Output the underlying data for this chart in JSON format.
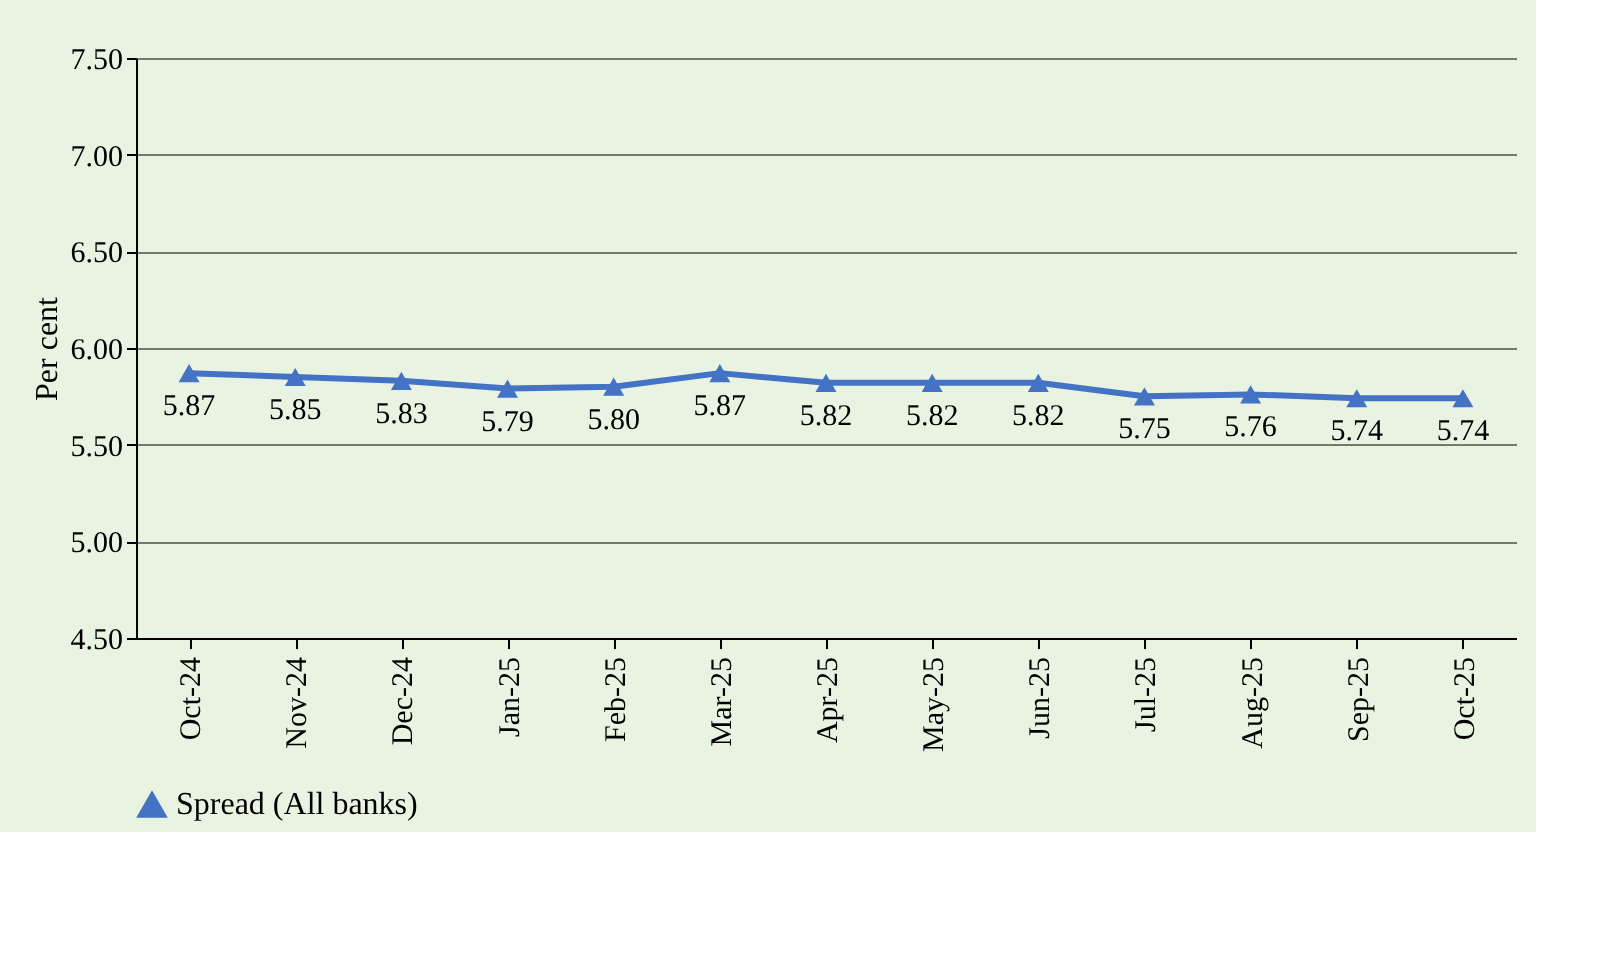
{
  "chart_data": {
    "type": "line",
    "ylabel": "Per cent",
    "categories": [
      "Oct-24",
      "Nov-24",
      "Dec-24",
      "Jan-25",
      "Feb-25",
      "Mar-25",
      "Apr-25",
      "May-25",
      "Jun-25",
      "Jul-25",
      "Aug-25",
      "Sep-25",
      "Oct-25"
    ],
    "series": [
      {
        "name": "Spread (All banks)",
        "color": "#4472c4",
        "values": [
          5.87,
          5.85,
          5.83,
          5.79,
          5.8,
          5.87,
          5.82,
          5.82,
          5.82,
          5.75,
          5.76,
          5.74,
          5.74
        ],
        "value_labels": [
          "5.87",
          "5.85",
          "5.83",
          "5.79",
          "5.80",
          "5.87",
          "5.82",
          "5.82",
          "5.82",
          "5.75",
          "5.76",
          "5.74",
          "5.74"
        ]
      }
    ],
    "ylim": [
      4.5,
      7.5
    ],
    "yticks": [
      {
        "value": 4.5,
        "label": "4.50"
      },
      {
        "value": 5.0,
        "label": "5.00"
      },
      {
        "value": 5.5,
        "label": "5.50"
      },
      {
        "value": 6.0,
        "label": "6.00"
      },
      {
        "value": 6.5,
        "label": "6.50"
      },
      {
        "value": 7.0,
        "label": "7.00"
      },
      {
        "value": 7.5,
        "label": "7.50"
      }
    ],
    "grid": "y",
    "legend": "bottom",
    "marker": "triangle",
    "line_style": "solid",
    "data_labels": true
  }
}
